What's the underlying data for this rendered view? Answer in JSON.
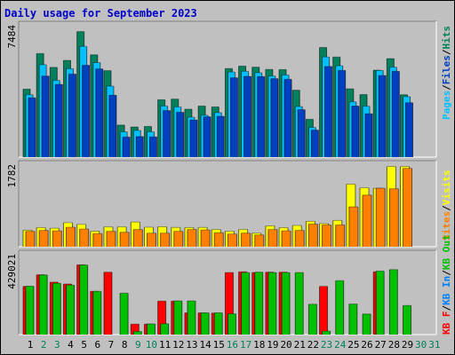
{
  "chart_data": [
    {
      "type": "bar",
      "title": "Daily usage for September 2023",
      "panel": "hits-files-pages",
      "ymax_label": "7484",
      "ylim": [
        0,
        7484
      ],
      "categories": [
        "1",
        "2",
        "3",
        "4",
        "5",
        "6",
        "7",
        "8",
        "9",
        "10",
        "11",
        "12",
        "13",
        "14",
        "15",
        "16",
        "17",
        "18",
        "19",
        "20",
        "21",
        "22",
        "23",
        "24",
        "25",
        "26",
        "27",
        "28",
        "29",
        "30",
        "31"
      ],
      "series": [
        {
          "name": "Hits",
          "color": "#00805c",
          "values": [
            3900,
            5940,
            5150,
            5550,
            7200,
            5870,
            4960,
            1840,
            1730,
            1760,
            3290,
            3330,
            2750,
            2930,
            2880,
            5080,
            5220,
            5160,
            5030,
            5020,
            3840,
            2170,
            6290,
            5740,
            3920,
            3590,
            4990,
            5650,
            3580,
            0,
            0
          ]
        },
        {
          "name": "Files",
          "color": "#00c0ff",
          "values": [
            3580,
            5300,
            4400,
            5070,
            6350,
            5420,
            4070,
            1450,
            1530,
            1450,
            2930,
            2880,
            2290,
            2400,
            2550,
            4880,
            4920,
            4840,
            4650,
            4710,
            2900,
            1700,
            5740,
            5240,
            3170,
            2920,
            4970,
            5160,
            3470,
            0,
            0
          ]
        },
        {
          "name": "Pages",
          "color": "#0040c0",
          "values": [
            3400,
            4650,
            4170,
            4760,
            5270,
            5060,
            3550,
            1150,
            1180,
            1160,
            2670,
            2570,
            2130,
            2310,
            2340,
            4550,
            4630,
            4620,
            4500,
            4460,
            2720,
            1550,
            5200,
            4970,
            2930,
            2490,
            4680,
            4920,
            3120,
            0,
            0
          ]
        }
      ]
    },
    {
      "type": "bar",
      "panel": "visits-sites",
      "ymax_label": "1782",
      "ylim": [
        0,
        1782
      ],
      "categories": [
        "1",
        "2",
        "3",
        "4",
        "5",
        "6",
        "7",
        "8",
        "9",
        "10",
        "11",
        "12",
        "13",
        "14",
        "15",
        "16",
        "17",
        "18",
        "19",
        "20",
        "21",
        "22",
        "23",
        "24",
        "25",
        "26",
        "27",
        "28",
        "29",
        "30",
        "31"
      ],
      "series": [
        {
          "name": "Visits",
          "color": "#ffff00",
          "values": [
            365,
            422,
            408,
            531,
            494,
            342,
            438,
            438,
            545,
            431,
            440,
            425,
            422,
            425,
            380,
            340,
            380,
            300,
            460,
            420,
            470,
            560,
            510,
            580,
            1380,
            1300,
            1290,
            1770,
            1770,
            0,
            0
          ]
        },
        {
          "name": "Sites",
          "color": "#ff8000",
          "values": [
            340,
            360,
            350,
            430,
            390,
            290,
            340,
            320,
            380,
            300,
            300,
            340,
            380,
            370,
            310,
            280,
            300,
            260,
            380,
            350,
            360,
            500,
            480,
            480,
            880,
            1140,
            1290,
            1280,
            1730,
            0,
            0
          ]
        }
      ]
    },
    {
      "type": "bar",
      "panel": "kb-in-out",
      "ymax_label": "429021",
      "ylim": [
        0,
        429021
      ],
      "categories": [
        "1",
        "2",
        "3",
        "4",
        "5",
        "6",
        "7",
        "8",
        "9",
        "10",
        "11",
        "12",
        "13",
        "14",
        "15",
        "16",
        "17",
        "18",
        "19",
        "20",
        "21",
        "22",
        "23",
        "24",
        "25",
        "26",
        "27",
        "28",
        "29",
        "30",
        "31"
      ],
      "series": [
        {
          "name": "KB F",
          "color": "#ff0000",
          "values": [
            262000,
            325000,
            285000,
            275000,
            379000,
            235000,
            339000,
            2000,
            57000,
            57000,
            182000,
            182000,
            118000,
            118000,
            117000,
            337000,
            341000,
            337000,
            339000,
            339000,
            0,
            0,
            262000,
            0,
            0,
            0,
            341000,
            0,
            0,
            0,
            0
          ]
        },
        {
          "name": "KB In",
          "color": "#0080ff",
          "values": [
            0,
            0,
            0,
            0,
            0,
            0,
            0,
            0,
            0,
            0,
            0,
            0,
            0,
            0,
            0,
            0,
            0,
            0,
            0,
            0,
            0,
            0,
            0,
            0,
            0,
            0,
            0,
            0,
            0,
            0,
            0
          ]
        },
        {
          "name": "KB Out",
          "color": "#00c000",
          "values": [
            263000,
            324000,
            279000,
            269000,
            378000,
            235000,
            0,
            225000,
            17000,
            58000,
            59000,
            183000,
            183000,
            118000,
            118000,
            113000,
            337000,
            339000,
            337000,
            337000,
            337000,
            165000,
            19000,
            293000,
            166000,
            112000,
            345000,
            353000,
            158000,
            0,
            0
          ]
        }
      ]
    }
  ],
  "legend_labels": {
    "p1": {
      "pages": "Pages",
      "files": "Files",
      "hits": "Hits",
      "sep": "/"
    },
    "p2": {
      "sites": "Sites",
      "visits": "Visits",
      "sep": "/"
    },
    "p3": {
      "kbf": "KB F",
      "kbin": "KB In",
      "kbout": "KB Out",
      "sep": "/"
    }
  },
  "day_labels": [
    {
      "t": "1",
      "weekend": false
    },
    {
      "t": "2",
      "weekend": true
    },
    {
      "t": "3",
      "weekend": true
    },
    {
      "t": "4",
      "weekend": false
    },
    {
      "t": "5",
      "weekend": false
    },
    {
      "t": "6",
      "weekend": false
    },
    {
      "t": "7",
      "weekend": false
    },
    {
      "t": "8",
      "weekend": false
    },
    {
      "t": "9",
      "weekend": true
    },
    {
      "t": "10",
      "weekend": true
    },
    {
      "t": "11",
      "weekend": false
    },
    {
      "t": "12",
      "weekend": false
    },
    {
      "t": "13",
      "weekend": false
    },
    {
      "t": "14",
      "weekend": false
    },
    {
      "t": "15",
      "weekend": false
    },
    {
      "t": "16",
      "weekend": true
    },
    {
      "t": "17",
      "weekend": true
    },
    {
      "t": "18",
      "weekend": false
    },
    {
      "t": "19",
      "weekend": false
    },
    {
      "t": "20",
      "weekend": false
    },
    {
      "t": "21",
      "weekend": false
    },
    {
      "t": "22",
      "weekend": false
    },
    {
      "t": "23",
      "weekend": true
    },
    {
      "t": "24",
      "weekend": true
    },
    {
      "t": "25",
      "weekend": false
    },
    {
      "t": "26",
      "weekend": false
    },
    {
      "t": "27",
      "weekend": false
    },
    {
      "t": "28",
      "weekend": false
    },
    {
      "t": "29",
      "weekend": false
    },
    {
      "t": "30",
      "weekend": true
    },
    {
      "t": "31",
      "weekend": true
    }
  ],
  "colors": {
    "background": "#c0c0c0",
    "title": "#0000c8",
    "weekday_label": "#000000",
    "weekend_label": "#00805c",
    "panel_border_dark": "#808080",
    "panel_border_light": "#ffffff"
  }
}
